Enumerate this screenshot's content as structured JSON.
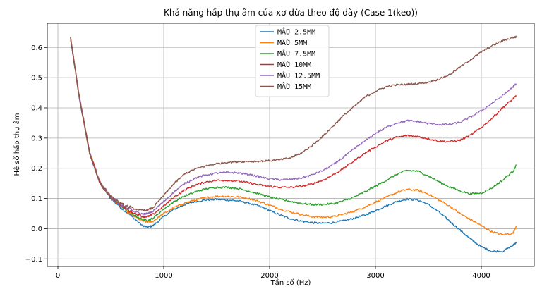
{
  "chart_data": {
    "type": "line",
    "title": "Khả năng hấp thụ âm của xơ dừa theo độ dày (Case 1(keo))",
    "xlabel": "Tần số (Hz)",
    "ylabel": "Hệ số hấp thụ âm",
    "xlim": [
      -100,
      4500
    ],
    "ylim": [
      -0.125,
      0.68
    ],
    "xticks": [
      0,
      1000,
      2000,
      3000,
      4000
    ],
    "xtick_labels": [
      "0",
      "1000",
      "2000",
      "3000",
      "4000"
    ],
    "yticks": [
      -0.1,
      0.0,
      0.1,
      0.2,
      0.3,
      0.4,
      0.5,
      0.6
    ],
    "ytick_labels": [
      "−0.1",
      "0.0",
      "0.1",
      "0.2",
      "0.3",
      "0.4",
      "0.5",
      "0.6"
    ],
    "grid": true,
    "legend_position": "top-center",
    "series": [
      {
        "name": "MẪU 2.5MM",
        "color": "#1f77b4",
        "x": [
          120,
          200,
          300,
          400,
          500,
          600,
          700,
          800,
          850,
          900,
          1000,
          1100,
          1200,
          1300,
          1400,
          1500,
          1600,
          1700,
          1800,
          1900,
          2000,
          2100,
          2200,
          2300,
          2400,
          2500,
          2600,
          2700,
          2800,
          2900,
          3000,
          3100,
          3200,
          3300,
          3400,
          3500,
          3600,
          3700,
          3800,
          3900,
          4000,
          4100,
          4200,
          4300,
          4330
        ],
        "y": [
          0.63,
          0.44,
          0.25,
          0.15,
          0.1,
          0.07,
          0.04,
          0.01,
          0.005,
          0.01,
          0.04,
          0.065,
          0.08,
          0.09,
          0.095,
          0.097,
          0.095,
          0.092,
          0.085,
          0.075,
          0.06,
          0.045,
          0.033,
          0.025,
          0.02,
          0.018,
          0.02,
          0.026,
          0.035,
          0.045,
          0.06,
          0.075,
          0.09,
          0.098,
          0.095,
          0.08,
          0.055,
          0.025,
          -0.005,
          -0.035,
          -0.06,
          -0.075,
          -0.075,
          -0.055,
          -0.045
        ]
      },
      {
        "name": "MẪU 5MM",
        "color": "#ff7f0e",
        "x": [
          120,
          200,
          300,
          400,
          500,
          600,
          700,
          800,
          850,
          900,
          1000,
          1100,
          1200,
          1300,
          1400,
          1500,
          1600,
          1700,
          1800,
          1900,
          2000,
          2100,
          2200,
          2300,
          2400,
          2500,
          2600,
          2700,
          2800,
          2900,
          3000,
          3100,
          3200,
          3300,
          3400,
          3500,
          3600,
          3700,
          3800,
          3900,
          4000,
          4100,
          4200,
          4300,
          4330
        ],
        "y": [
          0.63,
          0.44,
          0.25,
          0.15,
          0.105,
          0.075,
          0.045,
          0.025,
          0.022,
          0.025,
          0.05,
          0.07,
          0.085,
          0.095,
          0.103,
          0.107,
          0.107,
          0.105,
          0.1,
          0.09,
          0.078,
          0.065,
          0.055,
          0.047,
          0.04,
          0.038,
          0.04,
          0.048,
          0.058,
          0.072,
          0.088,
          0.103,
          0.12,
          0.13,
          0.127,
          0.115,
          0.095,
          0.075,
          0.05,
          0.03,
          0.01,
          -0.01,
          -0.02,
          -0.015,
          0.01
        ]
      },
      {
        "name": "MẪU 7.5MM",
        "color": "#2ca02c",
        "x": [
          120,
          200,
          300,
          400,
          500,
          600,
          700,
          800,
          850,
          900,
          1000,
          1100,
          1200,
          1300,
          1400,
          1500,
          1600,
          1700,
          1800,
          1900,
          2000,
          2100,
          2200,
          2300,
          2400,
          2500,
          2600,
          2700,
          2800,
          2900,
          3000,
          3100,
          3200,
          3300,
          3400,
          3500,
          3600,
          3700,
          3800,
          3900,
          4000,
          4100,
          4200,
          4300,
          4330
        ],
        "y": [
          0.63,
          0.44,
          0.25,
          0.15,
          0.105,
          0.075,
          0.05,
          0.03,
          0.028,
          0.035,
          0.065,
          0.09,
          0.108,
          0.122,
          0.132,
          0.137,
          0.137,
          0.133,
          0.125,
          0.115,
          0.105,
          0.097,
          0.09,
          0.084,
          0.08,
          0.08,
          0.083,
          0.092,
          0.105,
          0.122,
          0.14,
          0.16,
          0.18,
          0.193,
          0.19,
          0.175,
          0.155,
          0.138,
          0.125,
          0.115,
          0.118,
          0.135,
          0.16,
          0.19,
          0.21
        ]
      },
      {
        "name": "MẪU 10MM",
        "color": "#d62728",
        "x": [
          120,
          200,
          300,
          400,
          500,
          600,
          700,
          800,
          850,
          900,
          1000,
          1100,
          1200,
          1300,
          1400,
          1500,
          1600,
          1700,
          1800,
          1900,
          2000,
          2100,
          2200,
          2300,
          2400,
          2500,
          2600,
          2700,
          2800,
          2900,
          3000,
          3100,
          3200,
          3300,
          3400,
          3500,
          3600,
          3700,
          3800,
          3900,
          4000,
          4100,
          4200,
          4300,
          4330
        ],
        "y": [
          0.63,
          0.44,
          0.25,
          0.15,
          0.105,
          0.075,
          0.055,
          0.04,
          0.04,
          0.048,
          0.075,
          0.105,
          0.128,
          0.145,
          0.155,
          0.16,
          0.16,
          0.158,
          0.152,
          0.145,
          0.14,
          0.137,
          0.137,
          0.14,
          0.148,
          0.16,
          0.178,
          0.2,
          0.225,
          0.25,
          0.27,
          0.29,
          0.303,
          0.308,
          0.305,
          0.298,
          0.29,
          0.288,
          0.293,
          0.31,
          0.335,
          0.365,
          0.4,
          0.43,
          0.44
        ]
      },
      {
        "name": "MẪU 12.5MM",
        "color": "#9467bd",
        "x": [
          120,
          200,
          300,
          400,
          500,
          600,
          700,
          800,
          850,
          900,
          1000,
          1100,
          1200,
          1300,
          1400,
          1500,
          1600,
          1700,
          1800,
          1900,
          2000,
          2100,
          2200,
          2300,
          2400,
          2500,
          2600,
          2700,
          2800,
          2900,
          3000,
          3100,
          3200,
          3300,
          3400,
          3500,
          3600,
          3700,
          3800,
          3900,
          4000,
          4100,
          4200,
          4300,
          4330
        ],
        "y": [
          0.63,
          0.44,
          0.25,
          0.15,
          0.105,
          0.078,
          0.06,
          0.048,
          0.05,
          0.058,
          0.09,
          0.122,
          0.15,
          0.168,
          0.178,
          0.184,
          0.186,
          0.185,
          0.18,
          0.172,
          0.165,
          0.162,
          0.163,
          0.168,
          0.178,
          0.192,
          0.212,
          0.237,
          0.265,
          0.29,
          0.315,
          0.335,
          0.35,
          0.357,
          0.355,
          0.348,
          0.345,
          0.345,
          0.352,
          0.37,
          0.39,
          0.415,
          0.44,
          0.47,
          0.48
        ]
      },
      {
        "name": "MẪU 15MM",
        "color": "#8c564b",
        "x": [
          120,
          200,
          300,
          400,
          500,
          600,
          700,
          800,
          850,
          900,
          1000,
          1100,
          1200,
          1300,
          1400,
          1500,
          1600,
          1700,
          1800,
          1900,
          2000,
          2100,
          2200,
          2300,
          2400,
          2500,
          2600,
          2700,
          2800,
          2900,
          3000,
          3100,
          3200,
          3300,
          3400,
          3500,
          3600,
          3700,
          3800,
          3900,
          4000,
          4100,
          4200,
          4300,
          4330
        ],
        "y": [
          0.63,
          0.44,
          0.25,
          0.15,
          0.105,
          0.08,
          0.068,
          0.06,
          0.062,
          0.07,
          0.11,
          0.15,
          0.182,
          0.198,
          0.208,
          0.215,
          0.22,
          0.222,
          0.223,
          0.223,
          0.225,
          0.228,
          0.235,
          0.25,
          0.275,
          0.305,
          0.34,
          0.375,
          0.405,
          0.435,
          0.455,
          0.47,
          0.476,
          0.478,
          0.48,
          0.485,
          0.495,
          0.51,
          0.535,
          0.56,
          0.585,
          0.605,
          0.622,
          0.633,
          0.635
        ]
      }
    ]
  }
}
